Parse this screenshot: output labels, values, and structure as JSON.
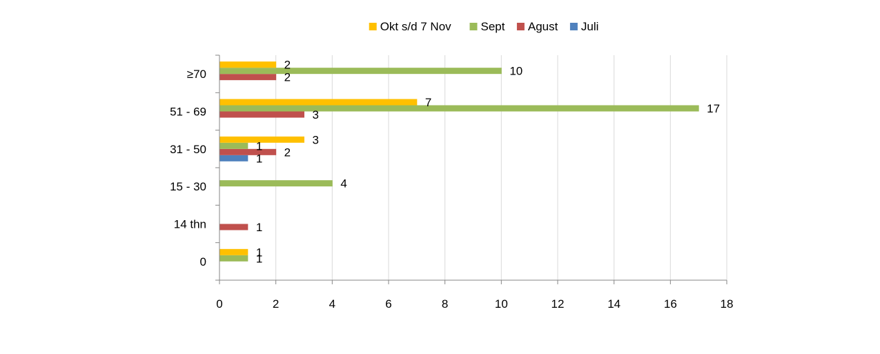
{
  "chart_data": {
    "type": "bar",
    "orientation": "horizontal",
    "title": "",
    "xlabel": "",
    "ylabel": "",
    "categories": [
      "0",
      "14 thn",
      "15 - 30",
      "31 - 50",
      "51 - 69",
      "≥70"
    ],
    "series": [
      {
        "name": "Juli",
        "color": "#4F81BD",
        "values": [
          null,
          null,
          null,
          1,
          null,
          null
        ]
      },
      {
        "name": "Agust",
        "color": "#C0504D",
        "values": [
          null,
          1,
          null,
          2,
          3,
          2
        ]
      },
      {
        "name": "Sept",
        "color": "#9BBB59",
        "values": [
          1,
          null,
          4,
          1,
          17,
          10
        ]
      },
      {
        "name": "Okt s/d 7 Nov",
        "color": "#FFC000",
        "values": [
          1,
          null,
          null,
          3,
          7,
          2
        ]
      }
    ],
    "legend_order": [
      "Okt s/d 7 Nov",
      "Sept",
      "Agust",
      "Juli"
    ],
    "xlim": [
      0,
      18
    ],
    "x_ticks": [
      0,
      2,
      4,
      6,
      8,
      10,
      12,
      14,
      16,
      18
    ],
    "legend_position": "top",
    "grid": "vertical",
    "data_labels": true
  }
}
